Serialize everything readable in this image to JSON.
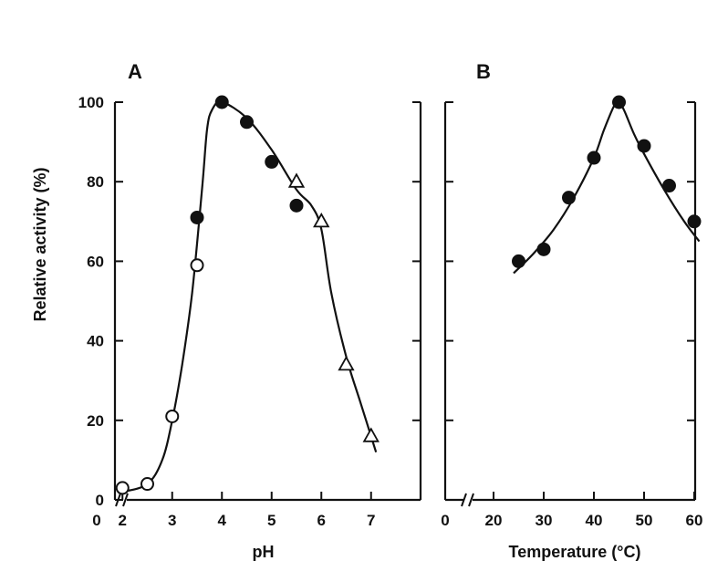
{
  "chart_data": [
    {
      "panel": "A",
      "type": "scatter",
      "xlabel": "pH",
      "ylabel": "Relative activity (%)",
      "xlim": [
        0,
        7
      ],
      "ylim": [
        0,
        100
      ],
      "x_ticks": [
        0,
        2,
        3,
        4,
        5,
        6,
        7
      ],
      "y_ticks": [
        0,
        20,
        40,
        60,
        80,
        100
      ],
      "axis_break": true,
      "series": [
        {
          "marker": "open-circle",
          "x": [
            2,
            2.5,
            3,
            3.5
          ],
          "y": [
            3,
            4,
            21,
            59
          ]
        },
        {
          "marker": "filled-circle",
          "x": [
            3.5,
            4,
            4.5,
            5,
            5.5
          ],
          "y": [
            71,
            100,
            95,
            85,
            74
          ]
        },
        {
          "marker": "open-triangle",
          "x": [
            5.5,
            6,
            6.5,
            7
          ],
          "y": [
            80,
            70,
            34,
            16
          ]
        }
      ],
      "fit_curve": {
        "x": [
          2,
          2.5,
          2.8,
          3,
          3.2,
          3.4,
          3.6,
          3.7,
          3.8,
          4,
          4.5,
          5,
          5.5,
          5.8,
          6,
          6.2,
          6.5,
          6.8,
          7.1
        ],
        "y": [
          2,
          4,
          10,
          20,
          34,
          52,
          78,
          93,
          98,
          100,
          96,
          88,
          78,
          74,
          68,
          52,
          36,
          24,
          12
        ]
      }
    },
    {
      "panel": "B",
      "type": "scatter",
      "xlabel": "Temperature (°C)",
      "ylabel": "",
      "xlim": [
        0,
        60
      ],
      "ylim": [
        0,
        100
      ],
      "x_ticks": [
        0,
        20,
        30,
        40,
        50,
        60
      ],
      "y_ticks": [
        0,
        20,
        40,
        60,
        80,
        100
      ],
      "axis_break": true,
      "series": [
        {
          "marker": "filled-circle",
          "x": [
            25,
            30,
            35,
            40,
            45,
            50,
            55,
            60
          ],
          "y": [
            60,
            63,
            76,
            86,
            100,
            89,
            79,
            70
          ]
        }
      ],
      "fit_curve": {
        "x": [
          24,
          28,
          32,
          36,
          40,
          42,
          44,
          45,
          46,
          48,
          50,
          54,
          58,
          61
        ],
        "y": [
          57,
          62,
          68,
          76,
          86,
          93,
          99,
          100,
          98,
          92,
          87,
          78,
          70,
          65
        ]
      }
    }
  ]
}
